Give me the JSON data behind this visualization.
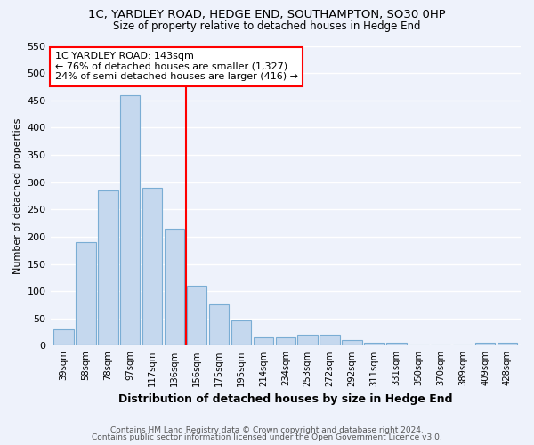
{
  "title": "1C, YARDLEY ROAD, HEDGE END, SOUTHAMPTON, SO30 0HP",
  "subtitle": "Size of property relative to detached houses in Hedge End",
  "xlabel": "Distribution of detached houses by size in Hedge End",
  "ylabel": "Number of detached properties",
  "categories": [
    "39sqm",
    "58sqm",
    "78sqm",
    "97sqm",
    "117sqm",
    "136sqm",
    "156sqm",
    "175sqm",
    "195sqm",
    "214sqm",
    "234sqm",
    "253sqm",
    "272sqm",
    "292sqm",
    "311sqm",
    "331sqm",
    "350sqm",
    "370sqm",
    "389sqm",
    "409sqm",
    "428sqm"
  ],
  "values": [
    30,
    190,
    285,
    460,
    290,
    215,
    110,
    75,
    47,
    15,
    15,
    20,
    20,
    10,
    5,
    5,
    0,
    0,
    0,
    5,
    5
  ],
  "bar_color": "#c5d8ee",
  "bar_edge_color": "#7aadd4",
  "vline_x_index": 6,
  "vline_color": "red",
  "annotation_text": "1C YARDLEY ROAD: 143sqm\n← 76% of detached houses are smaller (1,327)\n24% of semi-detached houses are larger (416) →",
  "annotation_box_color": "white",
  "annotation_box_edge": "red",
  "ylim": [
    0,
    550
  ],
  "yticks": [
    0,
    50,
    100,
    150,
    200,
    250,
    300,
    350,
    400,
    450,
    500,
    550
  ],
  "footnote1": "Contains HM Land Registry data © Crown copyright and database right 2024.",
  "footnote2": "Contains public sector information licensed under the Open Government Licence v3.0.",
  "bg_color": "#eef2fb",
  "grid_color": "white"
}
